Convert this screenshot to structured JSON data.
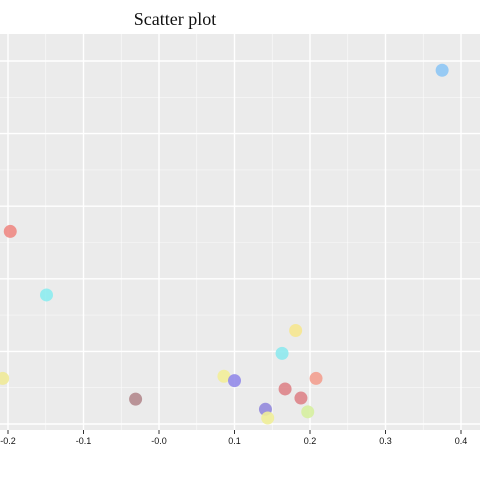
{
  "chart_data": {
    "type": "scatter",
    "title": "Scatter plot",
    "xlabel": "",
    "ylabel": "",
    "xlim": [
      -0.21,
      0.42
    ],
    "ylim": [
      0,
      1
    ],
    "grid": true,
    "x_ticks": [
      -0.2,
      -0.1,
      0.0,
      0.1,
      0.2,
      0.3,
      0.4
    ],
    "x_tick_labels": [
      "-0.2",
      "-0.1",
      "-0.0",
      "0.1",
      "0.2",
      "0.3",
      "0.4"
    ],
    "points": [
      {
        "x": 0.375,
        "y": 0.958,
        "color": "#8EC7F5"
      },
      {
        "x": -0.197,
        "y": 0.514,
        "color": "#EE8A84"
      },
      {
        "x": -0.149,
        "y": 0.339,
        "color": "#8DECF0"
      },
      {
        "x": 0.181,
        "y": 0.241,
        "color": "#F6E790"
      },
      {
        "x": 0.163,
        "y": 0.178,
        "color": "#8EE9EE"
      },
      {
        "x": 0.208,
        "y": 0.109,
        "color": "#F3A090"
      },
      {
        "x": -0.207,
        "y": 0.109,
        "color": "#F0EA99"
      },
      {
        "x": 0.086,
        "y": 0.115,
        "color": "#F3EE99"
      },
      {
        "x": 0.1,
        "y": 0.103,
        "color": "#938BE9"
      },
      {
        "x": 0.167,
        "y": 0.08,
        "color": "#DE8489"
      },
      {
        "x": 0.188,
        "y": 0.055,
        "color": "#DE8489"
      },
      {
        "x": -0.031,
        "y": 0.052,
        "color": "#B48A8E"
      },
      {
        "x": 0.141,
        "y": 0.024,
        "color": "#9389DD"
      },
      {
        "x": 0.197,
        "y": 0.017,
        "color": "#D6F0A0"
      },
      {
        "x": 0.144,
        "y": 0.0,
        "color": "#F0EE99"
      }
    ]
  }
}
